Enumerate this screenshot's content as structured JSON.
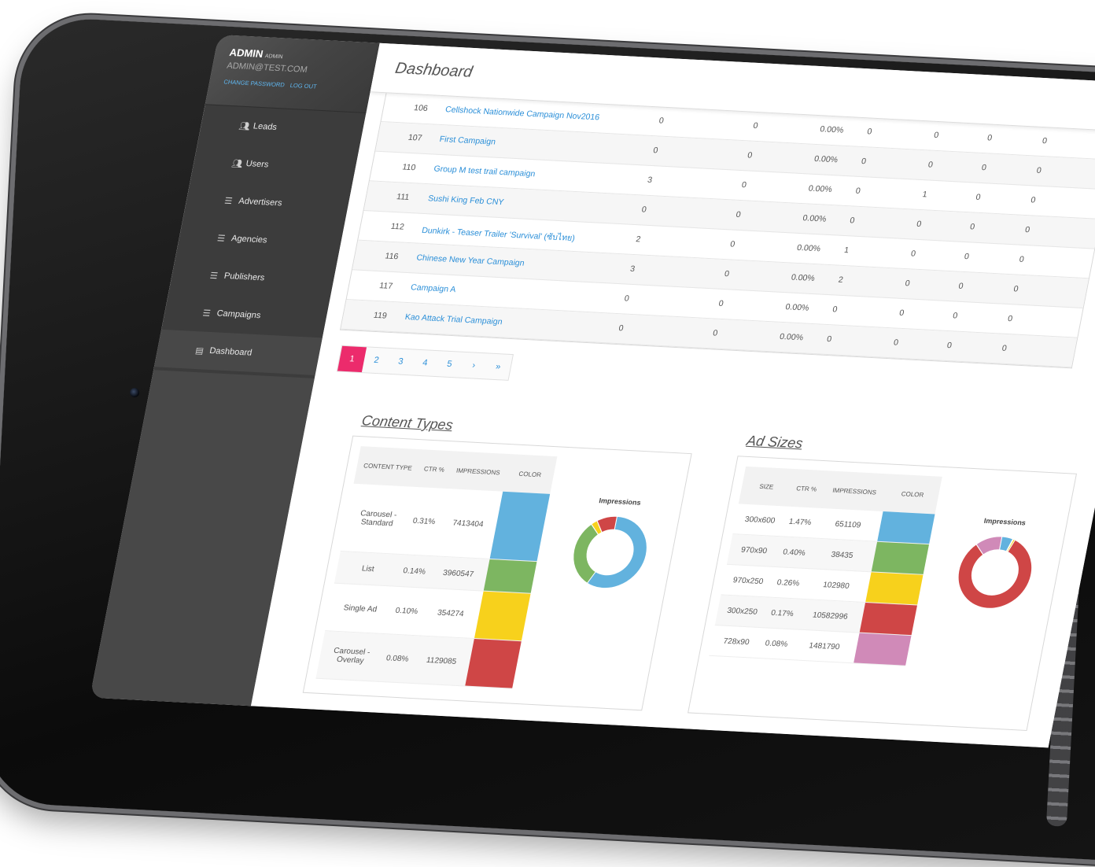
{
  "sidebar": {
    "user_name": "ADMIN",
    "user_role": "ADMIN",
    "email": "ADMIN@TEST.COM",
    "change_password": "CHANGE PASSWORD",
    "log_out": "LOG OUT",
    "items": [
      {
        "label": "Leads",
        "icon": "users-icon"
      },
      {
        "label": "Users",
        "icon": "users-icon"
      },
      {
        "label": "Advertisers",
        "icon": "list-icon"
      },
      {
        "label": "Agencies",
        "icon": "list-icon"
      },
      {
        "label": "Publishers",
        "icon": "list-icon"
      },
      {
        "label": "Campaigns",
        "icon": "list-icon"
      },
      {
        "label": "Dashboard",
        "icon": "chart-icon"
      }
    ]
  },
  "header": {
    "title": "Dashboard"
  },
  "campaigns": [
    {
      "id": "106",
      "name": "Cellshock Nationwide Campaign Nov2016",
      "v1": "0",
      "v2": "0",
      "ctr": "0.00%",
      "v4": "0",
      "v5": "0",
      "v6": "0",
      "v7": "0"
    },
    {
      "id": "107",
      "name": "First Campaign",
      "v1": "0",
      "v2": "0",
      "ctr": "0.00%",
      "v4": "0",
      "v5": "0",
      "v6": "0",
      "v7": "0"
    },
    {
      "id": "110",
      "name": "Group M test trail campaign",
      "v1": "3",
      "v2": "0",
      "ctr": "0.00%",
      "v4": "0",
      "v5": "1",
      "v6": "0",
      "v7": "0"
    },
    {
      "id": "111",
      "name": "Sushi King Feb CNY",
      "v1": "0",
      "v2": "0",
      "ctr": "0.00%",
      "v4": "0",
      "v5": "0",
      "v6": "0",
      "v7": "0"
    },
    {
      "id": "112",
      "name": "Dunkirk - Teaser Trailer 'Survival' (ซับไทย)",
      "v1": "2",
      "v2": "0",
      "ctr": "0.00%",
      "v4": "1",
      "v5": "0",
      "v6": "0",
      "v7": "0"
    },
    {
      "id": "116",
      "name": "Chinese New Year Campaign",
      "v1": "3",
      "v2": "0",
      "ctr": "0.00%",
      "v4": "2",
      "v5": "0",
      "v6": "0",
      "v7": "0"
    },
    {
      "id": "117",
      "name": "Campaign A",
      "v1": "0",
      "v2": "0",
      "ctr": "0.00%",
      "v4": "0",
      "v5": "0",
      "v6": "0",
      "v7": "0"
    },
    {
      "id": "119",
      "name": "Kao Attack Trial Campaign",
      "v1": "0",
      "v2": "0",
      "ctr": "0.00%",
      "v4": "0",
      "v5": "0",
      "v6": "0",
      "v7": "0"
    }
  ],
  "pagination": [
    "1",
    "2",
    "3",
    "4",
    "5",
    "›",
    "»"
  ],
  "content_types": {
    "title": "Content Types",
    "headers": {
      "type": "CONTENT TYPE",
      "ctr": "CTR %",
      "impressions": "IMPRESSIONS",
      "color": "COLOR"
    },
    "rows": [
      {
        "type": "Carousel - Standard",
        "ctr": "0.31%",
        "impressions": "7413404",
        "color": "#62b2de"
      },
      {
        "type": "List",
        "ctr": "0.14%",
        "impressions": "3960547",
        "color": "#7db661"
      },
      {
        "type": "Single Ad",
        "ctr": "0.10%",
        "impressions": "354274",
        "color": "#f7d11c"
      },
      {
        "type": "Carousel - Overlay",
        "ctr": "0.08%",
        "impressions": "1129085",
        "color": "#cf4646"
      }
    ],
    "donut_title": "Impressions"
  },
  "ad_sizes": {
    "title": "Ad Sizes",
    "headers": {
      "size": "SIZE",
      "ctr": "CTR %",
      "impressions": "IMPRESSIONS",
      "color": "COLOR"
    },
    "rows": [
      {
        "size": "300x600",
        "ctr": "1.47%",
        "impressions": "651109",
        "color": "#62b2de"
      },
      {
        "size": "970x90",
        "ctr": "0.40%",
        "impressions": "38435",
        "color": "#7db661"
      },
      {
        "size": "970x250",
        "ctr": "0.26%",
        "impressions": "102980",
        "color": "#f7d11c"
      },
      {
        "size": "300x250",
        "ctr": "0.17%",
        "impressions": "10582996",
        "color": "#cf4646"
      },
      {
        "size": "728x90",
        "ctr": "0.08%",
        "impressions": "1481790",
        "color": "#d08ab8"
      }
    ],
    "donut_title": "Impressions"
  }
}
